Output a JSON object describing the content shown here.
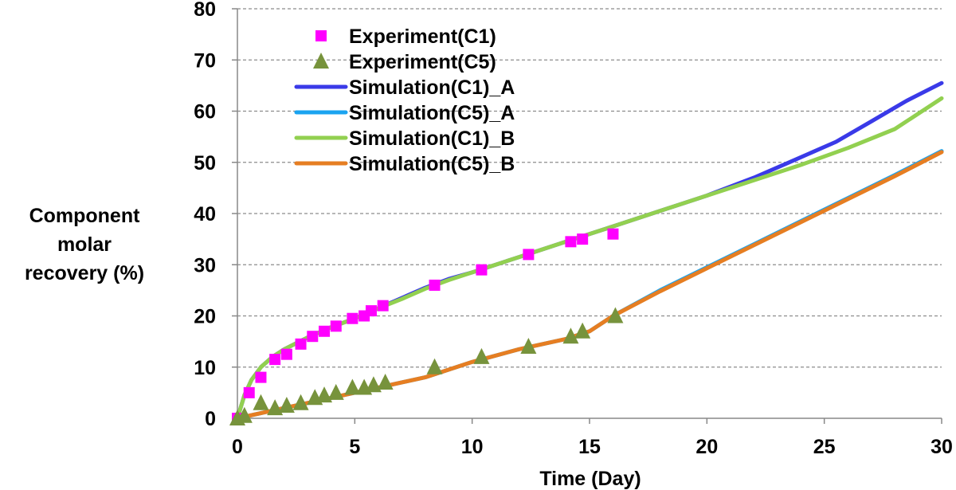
{
  "chart_data": {
    "type": "line",
    "title": "",
    "xlabel": "Time (Day)",
    "ylabel": "Component molar recovery (%)",
    "ylabel_lines": [
      "Component",
      "molar",
      "recovery (%)"
    ],
    "xlim": [
      0,
      30
    ],
    "ylim": [
      0,
      80
    ],
    "x_ticks": [
      "0",
      "5",
      "10",
      "15",
      "20",
      "25",
      "30"
    ],
    "y_ticks": [
      "0",
      "10",
      "20",
      "30",
      "40",
      "50",
      "60",
      "70",
      "80"
    ],
    "grid": "horizontal dashed",
    "legend_position": "top-left",
    "series": [
      {
        "name": "Experiment(C1)",
        "kind": "scatter",
        "marker": "square",
        "color": "#ff00ff",
        "x": [
          0,
          0.5,
          1.0,
          1.6,
          2.1,
          2.7,
          3.2,
          3.7,
          4.2,
          4.9,
          5.4,
          5.7,
          6.2,
          8.4,
          10.4,
          12.4,
          14.2,
          14.7,
          16.0
        ],
        "y": [
          0,
          5,
          8,
          11.5,
          12.5,
          14.5,
          16,
          17,
          18,
          19.5,
          20,
          21,
          22,
          26,
          29,
          32,
          34.5,
          35,
          36
        ]
      },
      {
        "name": "Experiment(C5)",
        "kind": "scatter",
        "marker": "triangle",
        "color": "#77933c",
        "x": [
          0,
          0.3,
          1.0,
          1.6,
          2.1,
          2.7,
          3.3,
          3.7,
          4.2,
          4.9,
          5.4,
          5.8,
          6.3,
          8.4,
          10.4,
          12.4,
          14.2,
          14.7,
          16.1
        ],
        "y": [
          0,
          0.5,
          3,
          2,
          2.5,
          3,
          4,
          4.5,
          5,
          6,
          6,
          6.5,
          7,
          10,
          12,
          14,
          16,
          17,
          20
        ]
      },
      {
        "name": "Simulation(C1)_A",
        "kind": "line",
        "color": "#3a3ae8",
        "x": [
          0,
          0.3,
          0.6,
          1,
          1.5,
          2,
          3,
          4,
          5,
          6,
          7,
          8,
          9,
          10,
          12,
          14,
          16,
          18,
          20,
          22,
          23.5,
          25.5,
          27,
          28.5,
          30
        ],
        "y": [
          0,
          4.5,
          7.5,
          10,
          12,
          13.5,
          15.8,
          17.8,
          19.5,
          21.5,
          23.5,
          25.5,
          27.2,
          28.5,
          31.5,
          34.5,
          37.5,
          40.5,
          43.5,
          47,
          50,
          54,
          58,
          62,
          65.5
        ]
      },
      {
        "name": "Simulation(C5)_A",
        "kind": "line",
        "color": "#1aa3f0",
        "x": [
          0,
          2,
          4,
          6,
          8,
          10,
          12,
          14,
          15,
          16,
          18,
          20,
          22,
          24,
          26,
          28,
          30
        ],
        "y": [
          0,
          2,
          4,
          6,
          8,
          11,
          13.5,
          15.5,
          17,
          20,
          25,
          29.5,
          34,
          38.5,
          43,
          47.5,
          52.2
        ]
      },
      {
        "name": "Simulation(C1)_B",
        "kind": "line",
        "color": "#92d050",
        "x": [
          0,
          0.3,
          0.6,
          1,
          1.5,
          2,
          3,
          4,
          5,
          6,
          7,
          8,
          9,
          10,
          12,
          14,
          16,
          18,
          20,
          22,
          24,
          26,
          28,
          30
        ],
        "y": [
          0,
          4.5,
          7.5,
          10,
          12,
          13.5,
          15.8,
          17.8,
          19.5,
          21.5,
          23.3,
          25.3,
          27,
          28.5,
          31.5,
          34.5,
          37.5,
          40.5,
          43.5,
          46.5,
          49.5,
          52.8,
          56.5,
          62.5
        ]
      },
      {
        "name": "Simulation(C5)_B",
        "kind": "line",
        "color": "#e67e22",
        "x": [
          0,
          2,
          4,
          6,
          8,
          10,
          12,
          14,
          15,
          16,
          18,
          20,
          22,
          24,
          26,
          28,
          30
        ],
        "y": [
          0,
          2,
          4,
          6,
          8,
          11,
          13.5,
          15.5,
          17,
          20,
          24.8,
          29.3,
          33.8,
          38.3,
          42.8,
          47.3,
          52
        ]
      }
    ]
  }
}
